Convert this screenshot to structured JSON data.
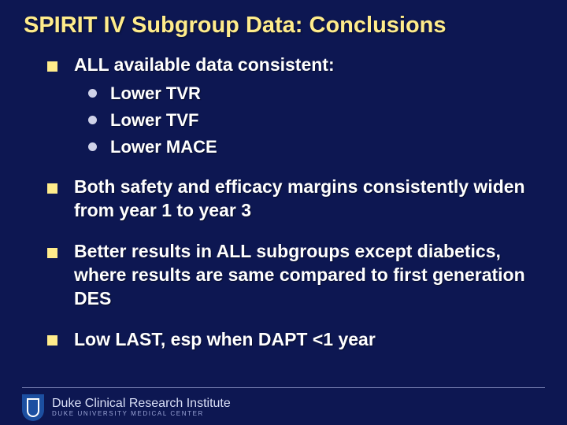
{
  "colors": {
    "background": "#0d1752",
    "title": "#ffec8b",
    "bullet_square": "#ffec8b",
    "bullet_round": "#cfd2e8",
    "body_text": "#ffffff",
    "footer_rule": "#6f78ab",
    "logo_primary": "#1c4fa1",
    "logo_accent": "#ffffff",
    "logo_text1": "#d9dff6",
    "logo_text2": "#9aa4d6"
  },
  "typography": {
    "title_fontsize": 29,
    "level1_fontsize": 23,
    "level2_fontsize": 22,
    "logo_line1_fontsize": 16,
    "logo_line2_fontsize": 8
  },
  "title": "SPIRIT IV Subgroup Data:  Conclusions",
  "bullets": [
    {
      "text": "ALL available data consistent:",
      "sub": [
        "Lower TVR",
        "Lower TVF",
        "Lower MACE"
      ]
    },
    {
      "text": "Both safety and efficacy margins consistently widen from year 1 to year 3"
    },
    {
      "text": "Better results in ALL subgroups except diabetics, where results are same compared to first generation DES"
    },
    {
      "text": "Low LAST, esp when DAPT <1 year"
    }
  ],
  "footer": {
    "line1": "Duke Clinical Research Institute",
    "line2": "DUKE UNIVERSITY MEDICAL CENTER"
  }
}
